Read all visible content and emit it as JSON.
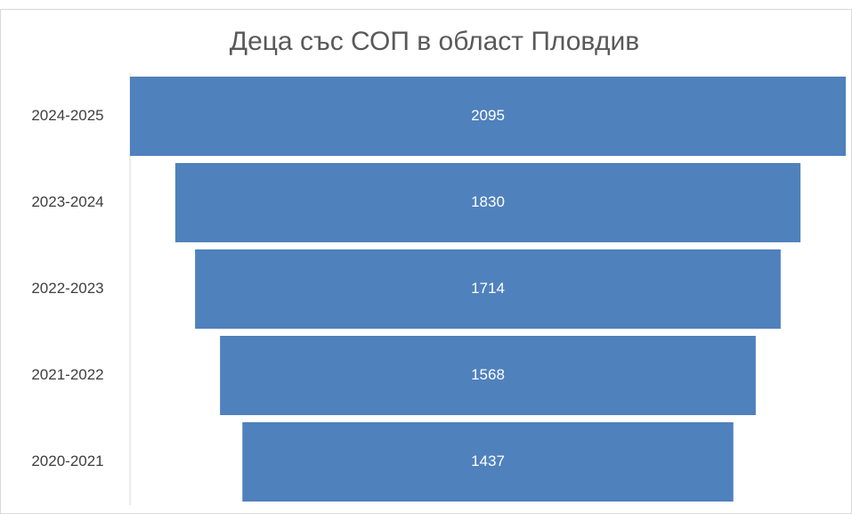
{
  "chart_data": {
    "type": "funnel",
    "title": "Деца със СОП в област Пловдив",
    "categories": [
      "2024-2025",
      "2023-2024",
      "2022-2023",
      "2021-2022",
      "2020-2021"
    ],
    "values": [
      2095,
      1830,
      1714,
      1568,
      1437
    ],
    "color": "#4f81bd"
  }
}
